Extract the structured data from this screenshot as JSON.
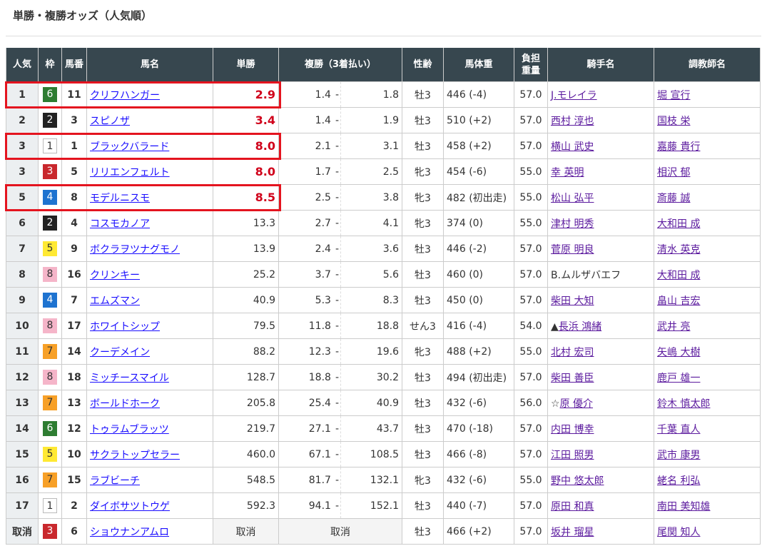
{
  "title": "単勝・複勝オッズ（人気順）",
  "headers": {
    "pop": "人気",
    "waku": "枠",
    "umaban": "馬番",
    "name": "馬名",
    "win": "単勝",
    "place": "複勝（3着払い）",
    "sexage": "性齢",
    "weight": "馬体重",
    "load1": "負担",
    "load2": "重量",
    "jockey": "騎手名",
    "trainer": "調教師名"
  },
  "place_separator": "-",
  "waku_colors": {
    "1": {
      "bg": "#ffffff",
      "fg": "#333333",
      "border": "#bbbbbb"
    },
    "2": {
      "bg": "#222222",
      "fg": "#ffffff"
    },
    "3": {
      "bg": "#c9282d",
      "fg": "#ffffff"
    },
    "4": {
      "bg": "#1e73d0",
      "fg": "#ffffff"
    },
    "5": {
      "bg": "#ffe933",
      "fg": "#333333"
    },
    "6": {
      "bg": "#2e7d32",
      "fg": "#ffffff"
    },
    "7": {
      "bg": "#f7a027",
      "fg": "#333333"
    },
    "8": {
      "bg": "#f5b5c9",
      "fg": "#333333"
    }
  },
  "highlight_color": "#e4141f",
  "rows": [
    {
      "pop": "1",
      "waku": "6",
      "umaban": "11",
      "name": "クリフハンガー",
      "win": "2.9",
      "hot": true,
      "place_lo": "1.4",
      "place_hi": "1.8",
      "sexage": "牡3",
      "weight": "446 (-4)",
      "load": "57.0",
      "jockey": "J.モレイラ",
      "trainer": "堀 宣行",
      "highlighted": true
    },
    {
      "pop": "2",
      "waku": "2",
      "umaban": "3",
      "name": "スピノザ",
      "win": "3.4",
      "hot": true,
      "place_lo": "1.4",
      "place_hi": "1.9",
      "sexage": "牡3",
      "weight": "510 (+2)",
      "load": "57.0",
      "jockey": "西村 淳也",
      "trainer": "国枝 栄"
    },
    {
      "pop": "3",
      "waku": "1",
      "umaban": "1",
      "name": "ブラックバラード",
      "win": "8.0",
      "hot": true,
      "place_lo": "2.1",
      "place_hi": "3.1",
      "sexage": "牡3",
      "weight": "458 (+2)",
      "load": "57.0",
      "jockey": "横山 武史",
      "trainer": "嘉藤 貴行",
      "highlighted": true
    },
    {
      "pop": "3",
      "waku": "3",
      "umaban": "5",
      "name": "リリエンフェルト",
      "win": "8.0",
      "hot": true,
      "place_lo": "1.7",
      "place_hi": "2.5",
      "sexage": "牝3",
      "weight": "454 (-6)",
      "load": "55.0",
      "jockey": "幸 英明",
      "trainer": "相沢 郁"
    },
    {
      "pop": "5",
      "waku": "4",
      "umaban": "8",
      "name": "モデルニスモ",
      "win": "8.5",
      "hot": true,
      "place_lo": "2.5",
      "place_hi": "3.8",
      "sexage": "牝3",
      "weight": "482 (初出走)",
      "load": "55.0",
      "jockey": "松山 弘平",
      "trainer": "斎藤 誠",
      "highlighted": true
    },
    {
      "pop": "6",
      "waku": "2",
      "umaban": "4",
      "name": "コスモカノア",
      "win": "13.3",
      "place_lo": "2.7",
      "place_hi": "4.1",
      "sexage": "牝3",
      "weight": "374 (0)",
      "load": "55.0",
      "jockey": "津村 明秀",
      "trainer": "大和田 成"
    },
    {
      "pop": "7",
      "waku": "5",
      "umaban": "9",
      "name": "ボクラヲツナグモノ",
      "win": "13.9",
      "place_lo": "2.4",
      "place_hi": "3.6",
      "sexage": "牡3",
      "weight": "446 (-2)",
      "load": "57.0",
      "jockey": "菅原 明良",
      "trainer": "清水 英克"
    },
    {
      "pop": "8",
      "waku": "8",
      "umaban": "16",
      "name": "クリンキー",
      "win": "25.2",
      "place_lo": "3.7",
      "place_hi": "5.6",
      "sexage": "牡3",
      "weight": "460 (0)",
      "load": "57.0",
      "jockey": "B.ムルザバエフ",
      "jockey_plain": true,
      "trainer": "大和田 成"
    },
    {
      "pop": "9",
      "waku": "4",
      "umaban": "7",
      "name": "エムズマン",
      "win": "40.9",
      "place_lo": "5.3",
      "place_hi": "8.3",
      "sexage": "牡3",
      "weight": "450 (0)",
      "load": "57.0",
      "jockey": "柴田 大知",
      "trainer": "畠山 吉宏"
    },
    {
      "pop": "10",
      "waku": "8",
      "umaban": "17",
      "name": "ホワイトシップ",
      "win": "79.5",
      "place_lo": "11.8",
      "place_hi": "18.8",
      "sexage": "せん3",
      "weight": "416 (-4)",
      "load": "54.0",
      "jockey_prefix": "▲",
      "jockey": "長浜 鴻緒",
      "trainer": "武井 亮"
    },
    {
      "pop": "11",
      "waku": "7",
      "umaban": "14",
      "name": "クーデメイン",
      "win": "88.2",
      "place_lo": "12.3",
      "place_hi": "19.6",
      "sexage": "牝3",
      "weight": "488 (+2)",
      "load": "55.0",
      "jockey": "北村 宏司",
      "trainer": "矢嶋 大樹"
    },
    {
      "pop": "12",
      "waku": "8",
      "umaban": "18",
      "name": "ミッチースマイル",
      "win": "128.7",
      "place_lo": "18.8",
      "place_hi": "30.2",
      "sexage": "牡3",
      "weight": "494 (初出走)",
      "load": "57.0",
      "jockey": "柴田 善臣",
      "trainer": "鹿戸 雄一"
    },
    {
      "pop": "13",
      "waku": "7",
      "umaban": "13",
      "name": "ボールドホーク",
      "win": "205.8",
      "place_lo": "25.4",
      "place_hi": "40.9",
      "sexage": "牡3",
      "weight": "432 (-6)",
      "load": "56.0",
      "jockey_prefix": "☆",
      "jockey": "原 優介",
      "trainer": "鈴木 慎太郎"
    },
    {
      "pop": "14",
      "waku": "6",
      "umaban": "12",
      "name": "トゥラムブラッツ",
      "win": "219.7",
      "place_lo": "27.1",
      "place_hi": "43.7",
      "sexage": "牡3",
      "weight": "470 (-18)",
      "load": "57.0",
      "jockey": "内田 博幸",
      "trainer": "千葉 直人"
    },
    {
      "pop": "15",
      "waku": "5",
      "umaban": "10",
      "name": "サクラトップセラー",
      "win": "460.0",
      "place_lo": "67.1",
      "place_hi": "108.5",
      "sexage": "牡3",
      "weight": "466 (-8)",
      "load": "57.0",
      "jockey": "江田 照男",
      "trainer": "武市 康男"
    },
    {
      "pop": "16",
      "waku": "7",
      "umaban": "15",
      "name": "ラブビーチ",
      "win": "548.5",
      "place_lo": "81.7",
      "place_hi": "132.1",
      "sexage": "牝3",
      "weight": "432 (-6)",
      "load": "55.0",
      "jockey": "野中 悠太郎",
      "trainer": "蛯名 利弘"
    },
    {
      "pop": "17",
      "waku": "1",
      "umaban": "2",
      "name": "ダイボサツトウゲ",
      "win": "592.3",
      "place_lo": "94.1",
      "place_hi": "152.1",
      "sexage": "牡3",
      "weight": "440 (-7)",
      "load": "57.0",
      "jockey": "原田 和真",
      "trainer": "南田 美知雄"
    },
    {
      "pop": "取消",
      "waku": "3",
      "umaban": "6",
      "name": "ショウナンアムロ",
      "win": "取消",
      "place": "取消",
      "cancelled": true,
      "sexage": "牡3",
      "weight": "466 (+2)",
      "load": "57.0",
      "jockey": "坂井 瑠星",
      "trainer": "尾関 知人"
    }
  ]
}
